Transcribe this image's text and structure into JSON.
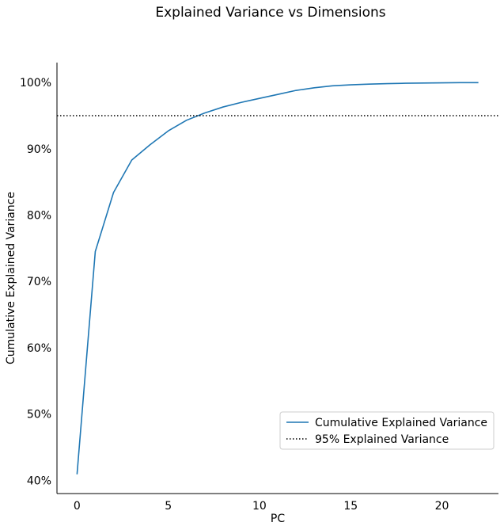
{
  "chart_data": {
    "type": "line",
    "title": "Explained Variance vs Dimensions",
    "xlabel": "PC",
    "ylabel": "Cumulative Explained Variance",
    "xlim": [
      -1.1,
      23.1
    ],
    "ylim": [
      38,
      103
    ],
    "xticks": [
      0,
      5,
      10,
      15,
      20
    ],
    "yticks": [
      {
        "value": 40,
        "label": "40%"
      },
      {
        "value": 50,
        "label": "50%"
      },
      {
        "value": 60,
        "label": "60%"
      },
      {
        "value": 70,
        "label": "70%"
      },
      {
        "value": 80,
        "label": "80%"
      },
      {
        "value": 90,
        "label": "90%"
      },
      {
        "value": 100,
        "label": "100%"
      }
    ],
    "grid": false,
    "legend_position": "lower-right",
    "series": [
      {
        "name": "Cumulative Explained Variance",
        "color": "#1f77b4",
        "style": "solid",
        "x": [
          0,
          1,
          2,
          3,
          4,
          5,
          6,
          7,
          8,
          9,
          10,
          11,
          12,
          13,
          14,
          15,
          16,
          17,
          18,
          19,
          20,
          21,
          22
        ],
        "y": [
          40.9,
          74.5,
          83.4,
          88.3,
          90.6,
          92.7,
          94.3,
          95.4,
          96.3,
          97.0,
          97.6,
          98.2,
          98.8,
          99.2,
          99.5,
          99.65,
          99.75,
          99.82,
          99.88,
          99.92,
          99.95,
          99.97,
          99.98
        ]
      },
      {
        "name": "95% Explained Variance",
        "color": "#000000",
        "style": "dotted",
        "hline": 95
      }
    ]
  }
}
